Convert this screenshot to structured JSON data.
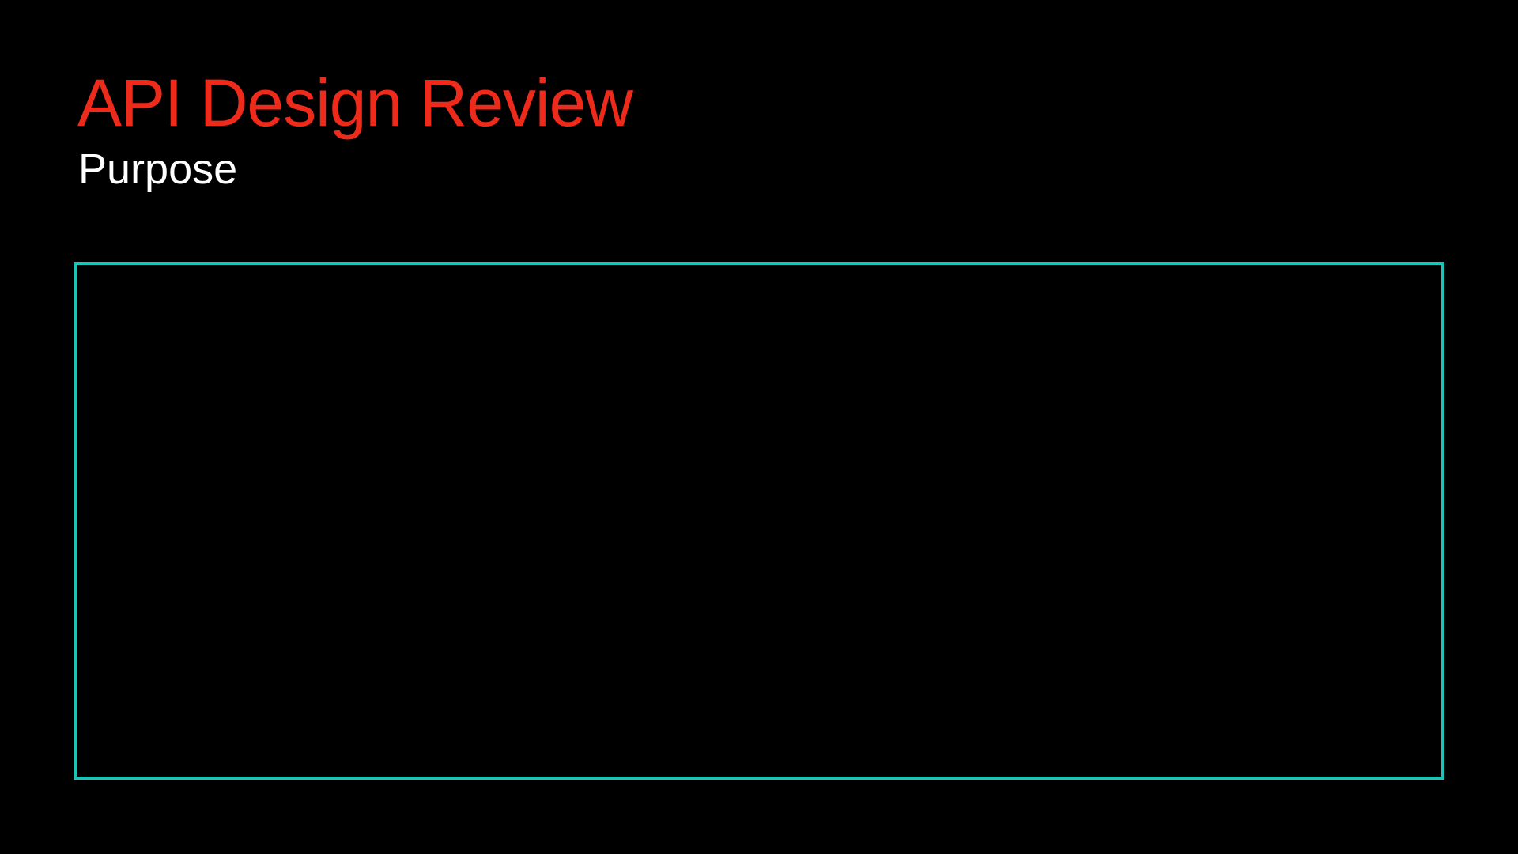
{
  "slide": {
    "title": "API Design Review",
    "subtitle": "Purpose"
  },
  "colors": {
    "background": "#000000",
    "title": "#ee2a1b",
    "subtitle": "#ffffff",
    "frame_border": "#1cc4b8"
  }
}
